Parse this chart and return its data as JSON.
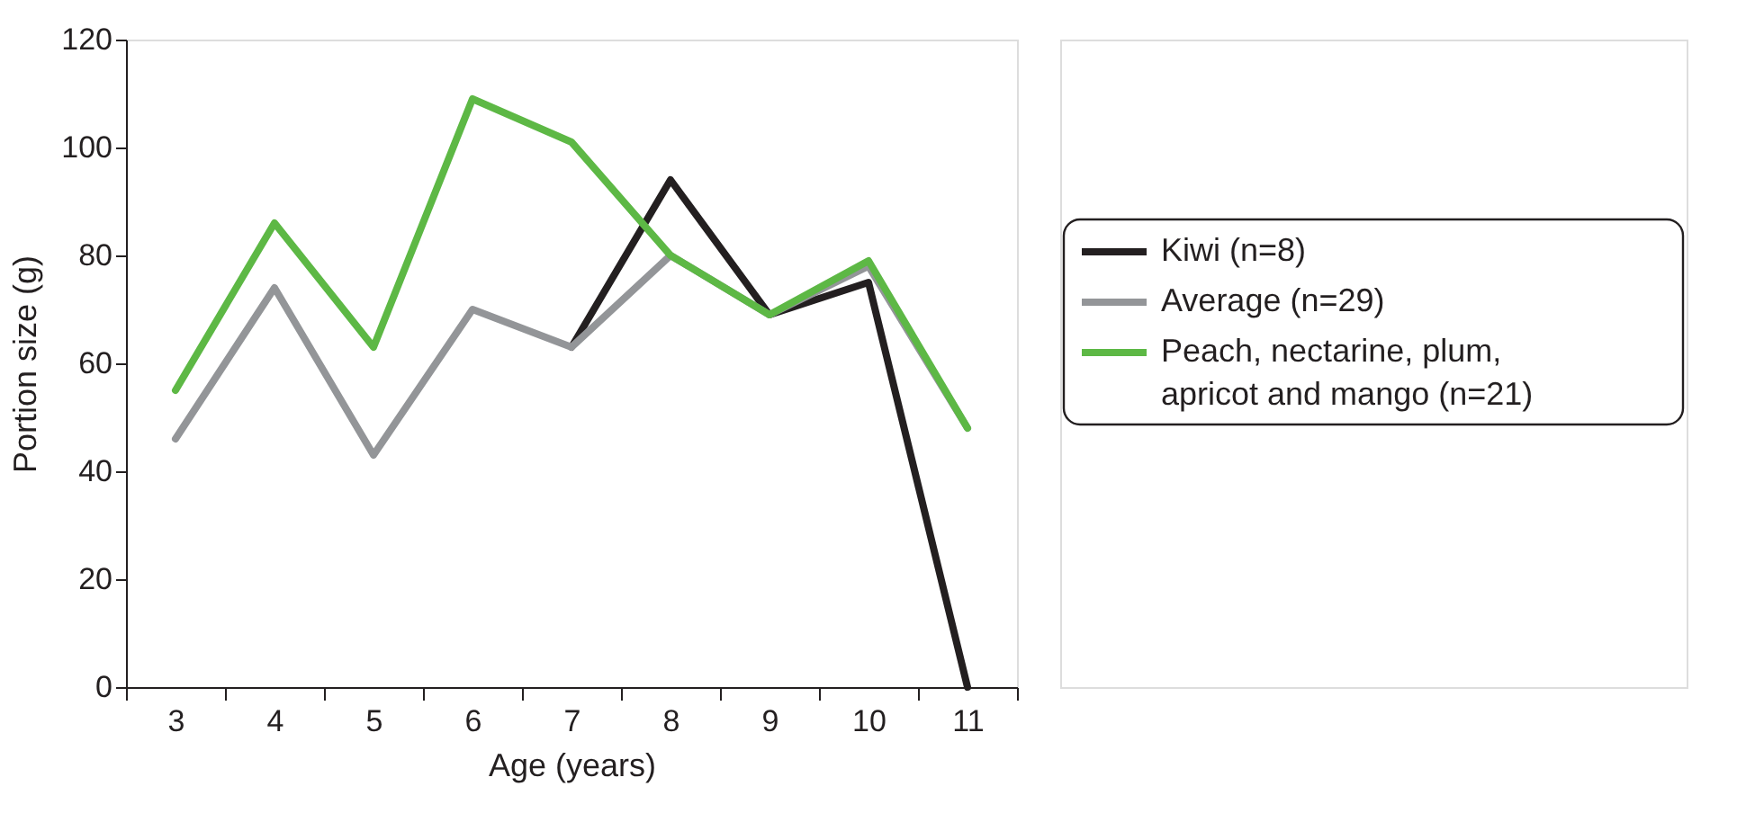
{
  "chart_data": {
    "type": "line",
    "xlabel": "Age (years)",
    "ylabel": "Portion size (g)",
    "categories": [
      "3",
      "4",
      "5",
      "6",
      "7",
      "8",
      "9",
      "10",
      "11"
    ],
    "ylim": [
      0,
      120
    ],
    "yticks": [
      0,
      20,
      40,
      60,
      80,
      100,
      120
    ],
    "grid": false,
    "legend": "right",
    "marker": "none",
    "line_style": "solid",
    "series": [
      {
        "name": "Kiwi (n=8)",
        "color": "#231f20",
        "values": [
          null,
          null,
          null,
          null,
          63,
          94,
          69,
          75,
          0
        ]
      },
      {
        "name": "Average (n=29)",
        "color": "#939598",
        "values": [
          46,
          74,
          43,
          70,
          63,
          80,
          69,
          78,
          48
        ]
      },
      {
        "name": "Peach, nectarine, plum, apricot and mango (n=21)",
        "color": "#5db845",
        "values": [
          55,
          86,
          63,
          109,
          101,
          80,
          69,
          79,
          48
        ]
      }
    ]
  }
}
